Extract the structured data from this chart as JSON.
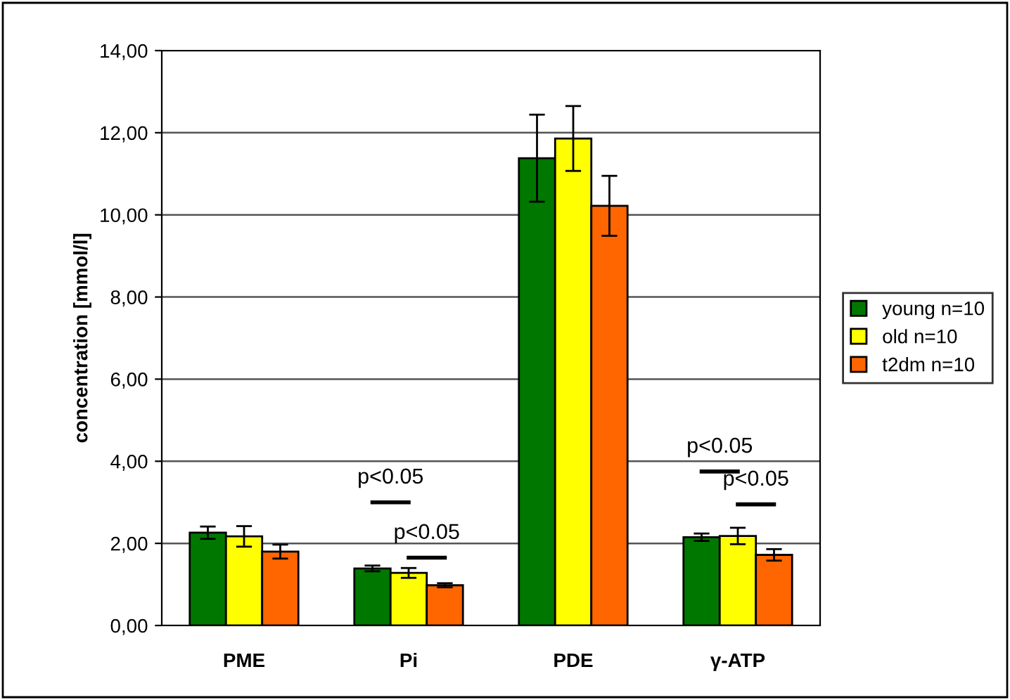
{
  "chart_data": {
    "type": "bar",
    "ylabel": "concentration [mmol/l]",
    "categories": [
      "PME",
      "Pi",
      "PDE",
      "γ-ATP"
    ],
    "series": [
      {
        "name": "young n=10",
        "color": "#007800",
        "values": [
          2.26,
          1.39,
          11.38,
          2.15
        ],
        "errors": [
          0.15,
          0.07,
          1.06,
          0.09
        ]
      },
      {
        "name": "old n=10",
        "color": "#ffff00",
        "values": [
          2.17,
          1.28,
          11.86,
          2.18
        ],
        "errors": [
          0.25,
          0.12,
          0.79,
          0.2
        ]
      },
      {
        "name": "t2dm n=10",
        "color": "#ff6600",
        "values": [
          1.8,
          0.98,
          10.22,
          1.72
        ],
        "errors": [
          0.17,
          0.05,
          0.73,
          0.14
        ]
      }
    ],
    "ylim": [
      0,
      14
    ],
    "yticks": [
      {
        "value": 0,
        "label": "0,00"
      },
      {
        "value": 2,
        "label": "2,00"
      },
      {
        "value": 4,
        "label": "4,00"
      },
      {
        "value": 6,
        "label": "6,00"
      },
      {
        "value": 8,
        "label": "8,00"
      },
      {
        "value": 10,
        "label": "10,00"
      },
      {
        "value": 12,
        "label": "12,00"
      },
      {
        "value": 14,
        "label": "14,00"
      }
    ],
    "grid": "y",
    "legend": "right",
    "annotations": [
      "p<0.05",
      "p<0.05",
      "p<0.05",
      "p<0.05"
    ]
  }
}
